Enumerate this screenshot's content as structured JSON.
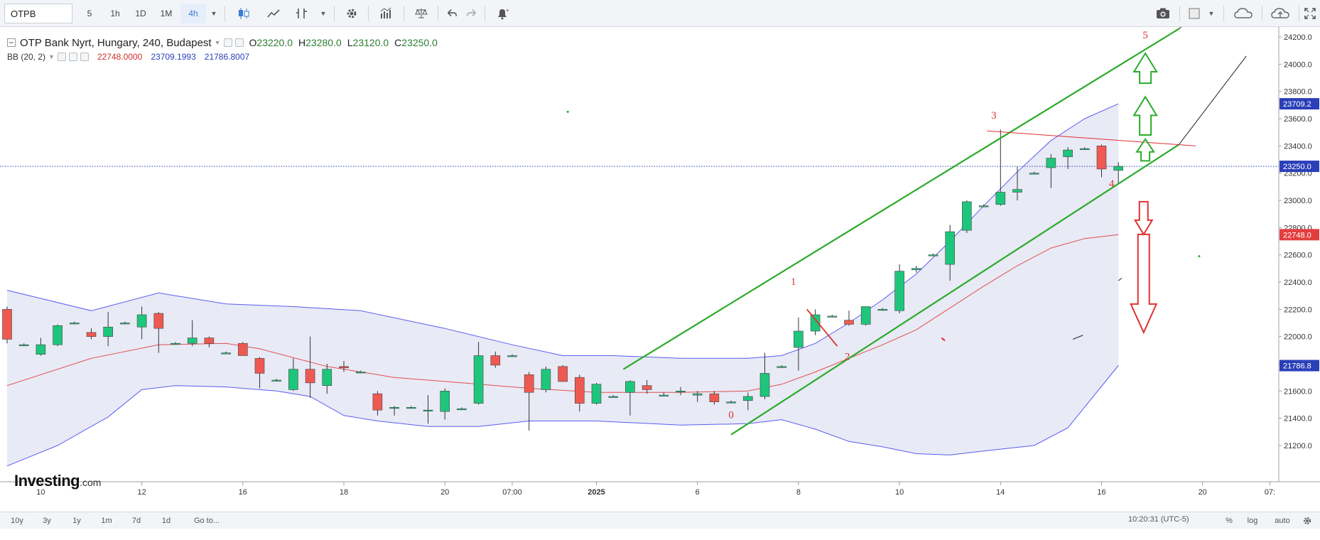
{
  "toolbar": {
    "symbol": "OTPB",
    "intervals": [
      "5",
      "1h",
      "1D",
      "1M",
      "4h"
    ],
    "active_interval": "4h"
  },
  "legend": {
    "title": "OTP Bank Nyrt, Hungary, 240, Budapest",
    "open_label": "O",
    "open": "23220.0",
    "high_label": "H",
    "high": "23280.0",
    "low_label": "L",
    "low": "23120.0",
    "close_label": "C",
    "close": "23250.0",
    "bb_name": "BB (20, 2)",
    "bb_basis": "22748.0000",
    "bb_upper": "23709.1993",
    "bb_lower": "21786.8007"
  },
  "colors": {
    "up": "#1ec67b",
    "down": "#ee5a52",
    "band_fill": "#e4e6f4",
    "band_line": "#5b5df0",
    "basis": "#e05050",
    "channel": "#2bab2b",
    "annot_red": "#e03030",
    "price_line": "#2b3fb8"
  },
  "brand": {
    "name": "Investing",
    "suffix": ".com"
  },
  "bottombar": {
    "ranges": [
      "10y",
      "3y",
      "1y",
      "1m",
      "7d",
      "1d",
      "Go to..."
    ],
    "time": "10:20:31 (UTC-5)",
    "options": [
      "%",
      "log",
      "auto"
    ]
  },
  "chart_data": {
    "type": "candlestick",
    "title": "OTP Bank Nyrt, Hungary, 240, Budapest",
    "ylim": [
      21000,
      24300
    ],
    "y_ticks": [
      21200,
      21400,
      21600,
      21800,
      22000,
      22200,
      22400,
      22600,
      22800,
      23000,
      23200,
      23400,
      23600,
      23800,
      24000,
      24200
    ],
    "x_tick_labels": [
      "10",
      "12",
      "16",
      "18",
      "20",
      "07:00",
      "2025",
      "6",
      "8",
      "10",
      "14",
      "16",
      "20",
      "07:"
    ],
    "x_tick_slots": [
      2,
      8,
      14,
      20,
      26,
      30,
      35,
      41,
      47,
      53,
      59,
      65,
      71,
      75
    ],
    "price_tags": [
      {
        "value": "23709.2",
        "y": 23709.2,
        "color": "#2b3fb8"
      },
      {
        "value": "23250.0",
        "y": 23250.0,
        "color": "#2b3fb8"
      },
      {
        "value": "22748.0",
        "y": 22748.0,
        "color": "#e33e3e"
      },
      {
        "value": "21786.8",
        "y": 21786.8,
        "color": "#2b3fb8"
      }
    ],
    "candles": [
      {
        "o": 22200,
        "h": 22220,
        "l": 21950,
        "c": 21980
      },
      {
        "o": 21940,
        "h": 21950,
        "l": 21930,
        "c": 21940
      },
      {
        "o": 21870,
        "h": 21990,
        "l": 21860,
        "c": 21940
      },
      {
        "o": 21940,
        "h": 22090,
        "l": 21930,
        "c": 22080
      },
      {
        "o": 22100,
        "h": 22110,
        "l": 22090,
        "c": 22100
      },
      {
        "o": 22030,
        "h": 22060,
        "l": 21980,
        "c": 22000
      },
      {
        "o": 22000,
        "h": 22180,
        "l": 21930,
        "c": 22070
      },
      {
        "o": 22100,
        "h": 22110,
        "l": 22090,
        "c": 22100
      },
      {
        "o": 22070,
        "h": 22220,
        "l": 21980,
        "c": 22160
      },
      {
        "o": 22170,
        "h": 22180,
        "l": 21880,
        "c": 22060
      },
      {
        "o": 21950,
        "h": 21960,
        "l": 21940,
        "c": 21950
      },
      {
        "o": 21950,
        "h": 22120,
        "l": 21930,
        "c": 21990
      },
      {
        "o": 21990,
        "h": 22000,
        "l": 21920,
        "c": 21950
      },
      {
        "o": 21880,
        "h": 21890,
        "l": 21870,
        "c": 21880
      },
      {
        "o": 21950,
        "h": 21960,
        "l": 21860,
        "c": 21860
      },
      {
        "o": 21840,
        "h": 21850,
        "l": 21620,
        "c": 21730
      },
      {
        "o": 21680,
        "h": 21690,
        "l": 21670,
        "c": 21680
      },
      {
        "o": 21610,
        "h": 21840,
        "l": 21600,
        "c": 21760
      },
      {
        "o": 21760,
        "h": 22000,
        "l": 21550,
        "c": 21660
      },
      {
        "o": 21640,
        "h": 21800,
        "l": 21580,
        "c": 21760
      },
      {
        "o": 21780,
        "h": 21820,
        "l": 21740,
        "c": 21770
      },
      {
        "o": 21740,
        "h": 21750,
        "l": 21730,
        "c": 21740
      },
      {
        "o": 21580,
        "h": 21600,
        "l": 21420,
        "c": 21460
      },
      {
        "o": 21480,
        "h": 21490,
        "l": 21420,
        "c": 21480
      },
      {
        "o": 21480,
        "h": 21490,
        "l": 21470,
        "c": 21480
      },
      {
        "o": 21460,
        "h": 21570,
        "l": 21360,
        "c": 21460
      },
      {
        "o": 21450,
        "h": 21620,
        "l": 21390,
        "c": 21600
      },
      {
        "o": 21470,
        "h": 21480,
        "l": 21460,
        "c": 21470
      },
      {
        "o": 21510,
        "h": 21960,
        "l": 21500,
        "c": 21860
      },
      {
        "o": 21860,
        "h": 21890,
        "l": 21770,
        "c": 21790
      },
      {
        "o": 21860,
        "h": 21870,
        "l": 21850,
        "c": 21860
      },
      {
        "o": 21720,
        "h": 21740,
        "l": 21310,
        "c": 21590
      },
      {
        "o": 21610,
        "h": 21780,
        "l": 21590,
        "c": 21760
      },
      {
        "o": 21780,
        "h": 21790,
        "l": 21670,
        "c": 21670
      },
      {
        "o": 21700,
        "h": 21720,
        "l": 21450,
        "c": 21510
      },
      {
        "o": 21510,
        "h": 21660,
        "l": 21500,
        "c": 21650
      },
      {
        "o": 21560,
        "h": 21570,
        "l": 21550,
        "c": 21560
      },
      {
        "o": 21590,
        "h": 21680,
        "l": 21420,
        "c": 21670
      },
      {
        "o": 21640,
        "h": 21680,
        "l": 21580,
        "c": 21610
      },
      {
        "o": 21570,
        "h": 21590,
        "l": 21560,
        "c": 21570
      },
      {
        "o": 21600,
        "h": 21630,
        "l": 21570,
        "c": 21600
      },
      {
        "o": 21570,
        "h": 21600,
        "l": 21520,
        "c": 21580
      },
      {
        "o": 21580,
        "h": 21600,
        "l": 21500,
        "c": 21520
      },
      {
        "o": 21520,
        "h": 21530,
        "l": 21510,
        "c": 21520
      },
      {
        "o": 21530,
        "h": 21590,
        "l": 21460,
        "c": 21560
      },
      {
        "o": 21560,
        "h": 21880,
        "l": 21540,
        "c": 21730
      },
      {
        "o": 21780,
        "h": 21790,
        "l": 21770,
        "c": 21780
      },
      {
        "o": 21920,
        "h": 22140,
        "l": 21750,
        "c": 22040
      },
      {
        "o": 22040,
        "h": 22200,
        "l": 22010,
        "c": 22160
      },
      {
        "o": 22150,
        "h": 22160,
        "l": 22140,
        "c": 22150
      },
      {
        "o": 22120,
        "h": 22190,
        "l": 22080,
        "c": 22090
      },
      {
        "o": 22090,
        "h": 22200,
        "l": 22080,
        "c": 22220
      },
      {
        "o": 22200,
        "h": 22210,
        "l": 22190,
        "c": 22200
      },
      {
        "o": 22190,
        "h": 22530,
        "l": 22170,
        "c": 22480
      },
      {
        "o": 22490,
        "h": 22520,
        "l": 22470,
        "c": 22500
      },
      {
        "o": 22600,
        "h": 22610,
        "l": 22590,
        "c": 22600
      },
      {
        "o": 22530,
        "h": 22820,
        "l": 22410,
        "c": 22770
      },
      {
        "o": 22780,
        "h": 23000,
        "l": 22760,
        "c": 22990
      },
      {
        "o": 22960,
        "h": 22970,
        "l": 22950,
        "c": 22960
      },
      {
        "o": 22970,
        "h": 23520,
        "l": 22960,
        "c": 23060
      },
      {
        "o": 23060,
        "h": 23250,
        "l": 23000,
        "c": 23080
      },
      {
        "o": 23200,
        "h": 23210,
        "l": 23190,
        "c": 23200
      },
      {
        "o": 23240,
        "h": 23340,
        "l": 23090,
        "c": 23310
      },
      {
        "o": 23320,
        "h": 23390,
        "l": 23230,
        "c": 23370
      },
      {
        "o": 23380,
        "h": 23390,
        "l": 23370,
        "c": 23380
      },
      {
        "o": 23400,
        "h": 23410,
        "l": 23170,
        "c": 23230
      },
      {
        "o": 23220,
        "h": 23280,
        "l": 23120,
        "c": 23250
      }
    ],
    "bollinger": {
      "upper": [
        [
          0,
          22340
        ],
        [
          5,
          22190
        ],
        [
          9,
          22320
        ],
        [
          13,
          22240
        ],
        [
          17,
          22220
        ],
        [
          21,
          22190
        ],
        [
          26,
          22060
        ],
        [
          30,
          21940
        ],
        [
          33,
          21860
        ],
        [
          36,
          21860
        ],
        [
          40,
          21840
        ],
        [
          44,
          21840
        ],
        [
          46,
          21860
        ],
        [
          48,
          21950
        ],
        [
          50,
          22100
        ],
        [
          52,
          22270
        ],
        [
          54,
          22460
        ],
        [
          56,
          22700
        ],
        [
          58,
          22960
        ],
        [
          60,
          23210
        ],
        [
          62,
          23440
        ],
        [
          64,
          23600
        ],
        [
          66,
          23709
        ]
      ],
      "basis": [
        [
          0,
          21640
        ],
        [
          5,
          21840
        ],
        [
          9,
          21940
        ],
        [
          13,
          21950
        ],
        [
          15,
          21910
        ],
        [
          19,
          21780
        ],
        [
          23,
          21700
        ],
        [
          27,
          21660
        ],
        [
          31,
          21620
        ],
        [
          35,
          21590
        ],
        [
          40,
          21590
        ],
        [
          44,
          21600
        ],
        [
          46,
          21650
        ],
        [
          48,
          21740
        ],
        [
          50,
          21840
        ],
        [
          52,
          21940
        ],
        [
          54,
          22050
        ],
        [
          56,
          22210
        ],
        [
          58,
          22370
        ],
        [
          60,
          22520
        ],
        [
          62,
          22650
        ],
        [
          64,
          22720
        ],
        [
          66,
          22748
        ]
      ],
      "lower": [
        [
          0,
          21050
        ],
        [
          3,
          21200
        ],
        [
          6,
          21410
        ],
        [
          8,
          21610
        ],
        [
          10,
          21640
        ],
        [
          13,
          21630
        ],
        [
          16,
          21600
        ],
        [
          18,
          21560
        ],
        [
          20,
          21420
        ],
        [
          22,
          21380
        ],
        [
          25,
          21340
        ],
        [
          28,
          21340
        ],
        [
          31,
          21380
        ],
        [
          35,
          21380
        ],
        [
          40,
          21350
        ],
        [
          44,
          21360
        ],
        [
          46,
          21390
        ],
        [
          48,
          21320
        ],
        [
          50,
          21230
        ],
        [
          52,
          21190
        ],
        [
          54,
          21140
        ],
        [
          56,
          21130
        ],
        [
          58,
          21160
        ],
        [
          61,
          21200
        ],
        [
          63,
          21330
        ],
        [
          66,
          21787
        ]
      ]
    },
    "annotations": {
      "wave_labels": [
        {
          "label": "0",
          "slot": 43,
          "y": 21400
        },
        {
          "label": "1",
          "slot": 46.7,
          "y": 22380
        },
        {
          "label": "2",
          "slot": 49.9,
          "y": 21830
        },
        {
          "label": "3",
          "slot": 58.6,
          "y": 23600
        },
        {
          "label": "4",
          "slot": 65.6,
          "y": 23100
        },
        {
          "label": "5",
          "slot": 67.6,
          "y": 24190
        }
      ]
    }
  }
}
